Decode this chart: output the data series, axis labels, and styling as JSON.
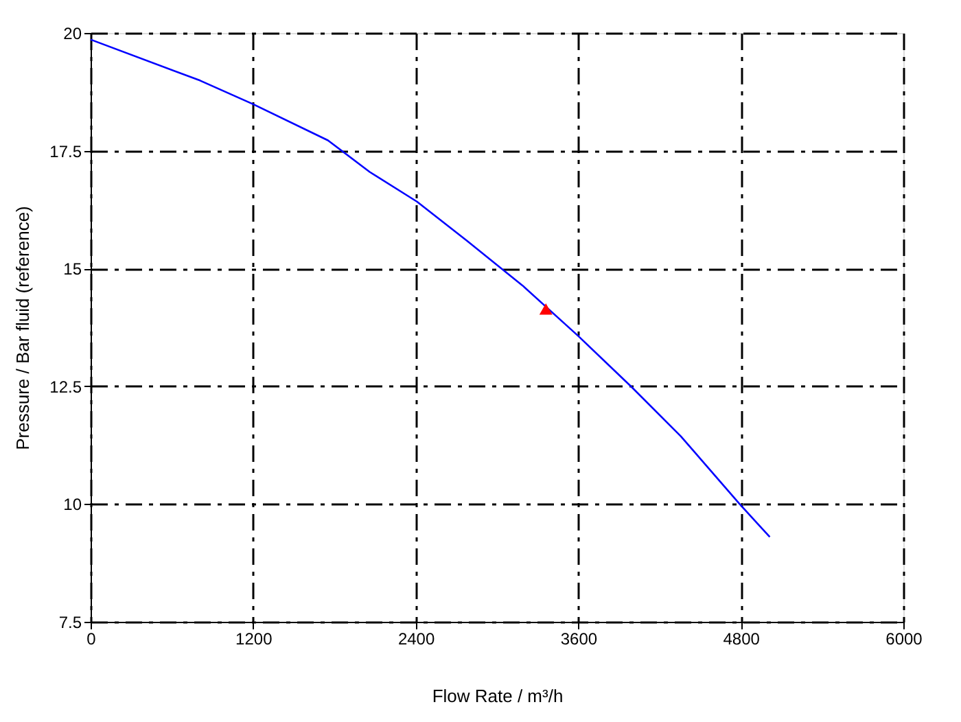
{
  "chart_data": {
    "type": "line",
    "xlabel": "Flow Rate / m³/h",
    "ylabel": "Pressure / Bar fluid (reference)",
    "xlim": [
      0,
      6000
    ],
    "xticks": [
      0,
      1200,
      2400,
      3600,
      4800,
      6000
    ],
    "ylim": [
      7.5,
      20
    ],
    "yticks": [
      7.5,
      10,
      12.5,
      15,
      17.5,
      20
    ],
    "grid": true,
    "series": [
      {
        "color": "#0000ff",
        "marker": "none",
        "x": [
          0,
          808,
          1198,
          1752,
          2060,
          2409,
          2778,
          3188,
          3599,
          3988,
          4357,
          4788,
          5014
        ],
        "values": [
          19.86,
          18.99,
          18.49,
          17.72,
          17.05,
          16.42,
          15.59,
          14.64,
          13.57,
          12.5,
          11.44,
          10.01,
          9.3
        ]
      },
      {
        "type": "scatter",
        "color": "#ff0000",
        "marker": "triangle",
        "x": [
          3361
        ],
        "values": [
          14.14
        ]
      }
    ]
  }
}
